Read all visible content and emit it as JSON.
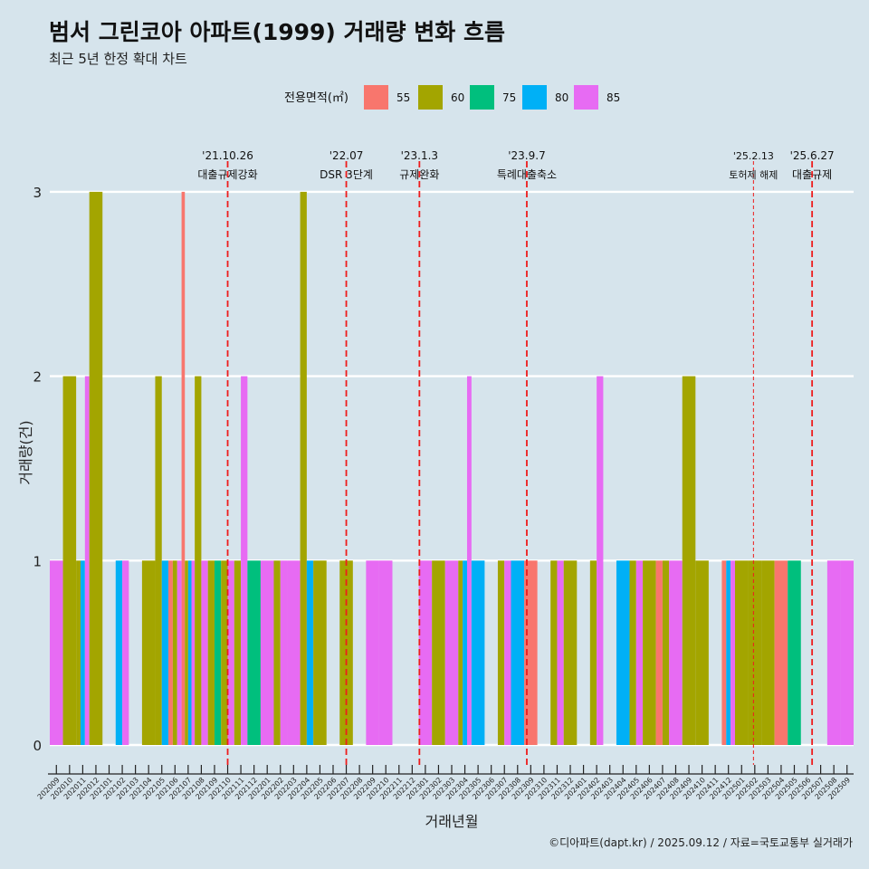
{
  "chart_title": "범서 그린코아 아파트(1999) 거래량 변화 흐름",
  "chart_subtitle": "최근 5년 한정 확대 차트",
  "caption": "©디아파트(dapt.kr) / 2025.09.12 / 자료=국토교통부 실거래가",
  "chart_data": {
    "type": "bar",
    "xlabel": "거래년월",
    "ylabel": "거래량(건)",
    "ylim": [
      0,
      3
    ],
    "yticks": [
      0,
      1,
      2,
      3
    ],
    "legend_title": "전용면적(㎡)",
    "legend_position": "top",
    "grid": "horizontal",
    "series": [
      {
        "name": "55",
        "color": "#f8766d"
      },
      {
        "name": "60",
        "color": "#a3a500"
      },
      {
        "name": "75",
        "color": "#00bf7d"
      },
      {
        "name": "80",
        "color": "#00b0f6"
      },
      {
        "name": "85",
        "color": "#e76bf3"
      }
    ],
    "months": [
      "202009",
      "202010",
      "202011",
      "202012",
      "202101",
      "202102",
      "202103",
      "202104",
      "202105",
      "202106",
      "202107",
      "202108",
      "202109",
      "202110",
      "202111",
      "202112",
      "202201",
      "202202",
      "202203",
      "202204",
      "202205",
      "202206",
      "202207",
      "202208",
      "202209",
      "202210",
      "202211",
      "202212",
      "202301",
      "202302",
      "202303",
      "202304",
      "202305",
      "202306",
      "202307",
      "202308",
      "202309",
      "202310",
      "202311",
      "202312",
      "202401",
      "202402",
      "202403",
      "202404",
      "202405",
      "202406",
      "202407",
      "202408",
      "202409",
      "202410",
      "202411",
      "202412",
      "202501",
      "202502",
      "202503",
      "202504",
      "202505",
      "202506",
      "202507",
      "202508",
      "202509"
    ],
    "bars": [
      {
        "month": "202009",
        "values": {
          "85": 1
        }
      },
      {
        "month": "202010",
        "values": {
          "60": 2
        }
      },
      {
        "month": "202011",
        "values": {
          "60": 1,
          "80": 1,
          "85": 2
        }
      },
      {
        "month": "202012",
        "values": {
          "60": 3
        }
      },
      {
        "month": "202102",
        "values": {
          "80": 1,
          "85": 1
        }
      },
      {
        "month": "202104",
        "values": {
          "60": 1
        }
      },
      {
        "month": "202105",
        "values": {
          "60": 2,
          "80": 1
        }
      },
      {
        "month": "202106",
        "values": {
          "55": 1,
          "60": 1,
          "85": 1
        }
      },
      {
        "month": "202107",
        "values": {
          "55": 3,
          "60": 1,
          "80": 1,
          "85": 1
        }
      },
      {
        "month": "202108",
        "values": {
          "60": 2,
          "85": 1
        }
      },
      {
        "month": "202109",
        "values": {
          "60": 1,
          "75": 1
        }
      },
      {
        "month": "202110",
        "values": {
          "60": 1,
          "85": 1
        }
      },
      {
        "month": "202111",
        "values": {
          "60": 1,
          "85": 2
        }
      },
      {
        "month": "202112",
        "values": {
          "75": 1
        }
      },
      {
        "month": "202201",
        "values": {
          "85": 1
        }
      },
      {
        "month": "202202",
        "values": {
          "60": 1,
          "85": 1
        }
      },
      {
        "month": "202203",
        "values": {
          "85": 1
        }
      },
      {
        "month": "202204",
        "values": {
          "60": 3,
          "80": 1
        }
      },
      {
        "month": "202205",
        "values": {
          "60": 1
        }
      },
      {
        "month": "202207",
        "values": {
          "60": 1
        }
      },
      {
        "month": "202209",
        "values": {
          "85": 1
        }
      },
      {
        "month": "202210",
        "values": {
          "85": 1
        }
      },
      {
        "month": "202301",
        "values": {
          "85": 1
        }
      },
      {
        "month": "202302",
        "values": {
          "60": 1
        }
      },
      {
        "month": "202303",
        "values": {
          "85": 1
        }
      },
      {
        "month": "202304",
        "values": {
          "60": 1,
          "80": 1,
          "85": 2
        }
      },
      {
        "month": "202305",
        "values": {
          "80": 1
        }
      },
      {
        "month": "202307",
        "values": {
          "60": 1,
          "85": 1
        }
      },
      {
        "month": "202308",
        "values": {
          "80": 1
        }
      },
      {
        "month": "202309",
        "values": {
          "55": 1
        }
      },
      {
        "month": "202311",
        "values": {
          "60": 1,
          "85": 1
        }
      },
      {
        "month": "202312",
        "values": {
          "60": 1
        }
      },
      {
        "month": "202402",
        "values": {
          "60": 1,
          "85": 2
        }
      },
      {
        "month": "202404",
        "values": {
          "80": 1
        }
      },
      {
        "month": "202405",
        "values": {
          "60": 1,
          "85": 1
        }
      },
      {
        "month": "202406",
        "values": {
          "60": 1
        }
      },
      {
        "month": "202407",
        "values": {
          "55": 1,
          "60": 1
        }
      },
      {
        "month": "202408",
        "values": {
          "85": 1
        }
      },
      {
        "month": "202409",
        "values": {
          "60": 2
        }
      },
      {
        "month": "202410",
        "values": {
          "60": 1
        }
      },
      {
        "month": "202412",
        "values": {
          "55": 1,
          "80": 1,
          "85": 1
        }
      },
      {
        "month": "202501",
        "values": {
          "60": 1
        }
      },
      {
        "month": "202502",
        "values": {
          "60": 1
        }
      },
      {
        "month": "202503",
        "values": {
          "60": 1
        }
      },
      {
        "month": "202504",
        "values": {
          "55": 1
        }
      },
      {
        "month": "202505",
        "values": {
          "75": 1
        }
      },
      {
        "month": "202508",
        "values": {
          "85": 1
        }
      },
      {
        "month": "202509",
        "values": {
          "85": 1
        }
      }
    ],
    "events": [
      {
        "date": "'21.10.26",
        "label": "대출규제강화",
        "month": "202110",
        "pos": 0.5,
        "dash": "long"
      },
      {
        "date": "'22.07",
        "label": "DSR 3단계",
        "month": "202207",
        "pos": 0.5,
        "dash": "long"
      },
      {
        "date": "'23.1.3",
        "label": "규제완화",
        "month": "202301",
        "pos": 0.05,
        "dash": "long"
      },
      {
        "date": "'23.9.7",
        "label": "특례대출축소",
        "month": "202309",
        "pos": 0.2,
        "dash": "long"
      },
      {
        "date": "'25.2.13",
        "label": "토허제 해제",
        "month": "202502",
        "pos": 0.4,
        "dash": "short"
      },
      {
        "date": "'25.6.27",
        "label": "대출규제",
        "month": "202506",
        "pos": 0.85,
        "dash": "long"
      }
    ]
  }
}
